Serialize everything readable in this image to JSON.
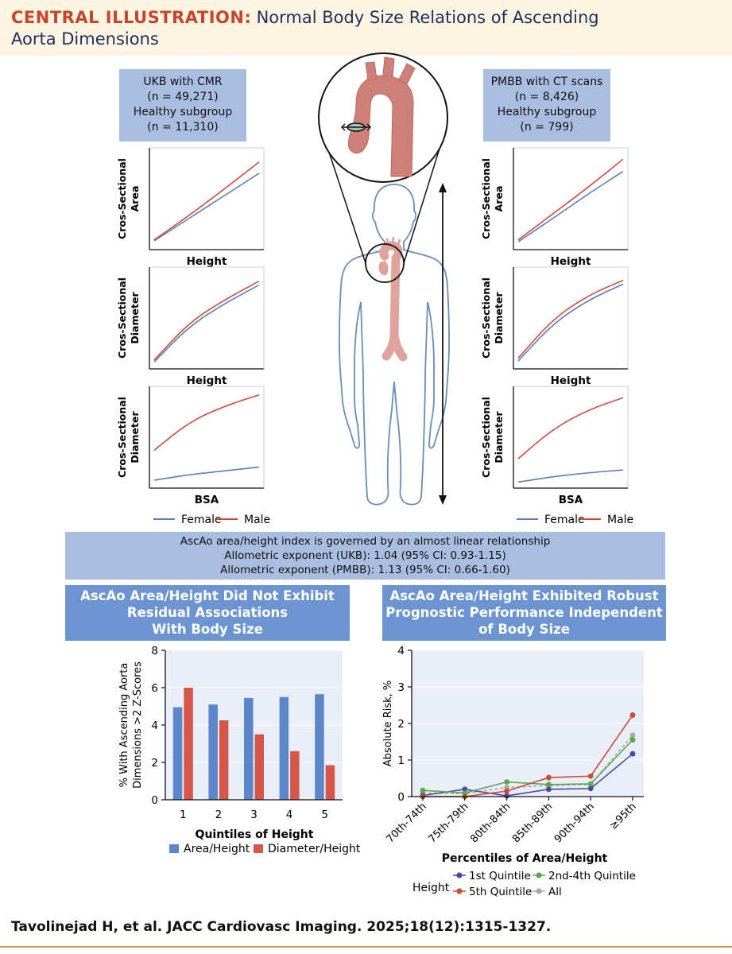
{
  "header": {
    "label": "CENTRAL ILLUSTRATION",
    "colon": ":",
    "title_line1": "Normal Body Size Relations of Ascending",
    "title_line2": "Aorta Dimensions"
  },
  "cohorts": {
    "left": {
      "lines": [
        "UKB with CMR",
        "(n = 49,271)",
        "Healthy subgroup",
        "(n = 11,310)"
      ]
    },
    "right": {
      "lines": [
        "PMBB with CT scans",
        "(n = 8,426)",
        "Healthy subgroup",
        "(n = 799)"
      ]
    }
  },
  "small_charts": {
    "left": [
      {
        "ylabel_lines": [
          "Cros-Sectional",
          "Area"
        ],
        "xlabel": "Height"
      },
      {
        "ylabel_lines": [
          "Cros-Sectional",
          "Diameter"
        ],
        "xlabel": "Height"
      },
      {
        "ylabel_lines": [
          "Cros-Sectional",
          "Diameter"
        ],
        "xlabel": "BSA"
      }
    ],
    "right": [
      {
        "ylabel_lines": [
          "Cros-Sectional",
          "Area"
        ],
        "xlabel": "Height"
      },
      {
        "ylabel_lines": [
          "Cros-Sectional",
          "Diameter"
        ],
        "xlabel": "Height"
      },
      {
        "ylabel_lines": [
          "Cros-Sectional",
          "Diameter"
        ],
        "xlabel": "BSA"
      }
    ],
    "legend": {
      "female": "Female",
      "male": "Male"
    },
    "colors": {
      "female": "#5b7fb8",
      "male": "#cf4a3a"
    }
  },
  "summary": {
    "lines": [
      "AscAo area/height index is governed by an almost linear relationship",
      "Allometric exponent (UKB): 1.04 (95% CI: 0.93-1.15)",
      "Allometric exponent (PMBB): 1.13 (95% CI: 0.66-1.60)"
    ]
  },
  "panels": {
    "left_title_lines": [
      "AscAo Area/Height Did Not Exhibit",
      "Residual Associations",
      "With Body Size"
    ],
    "right_title_lines": [
      "AscAo Area/Height Exhibited Robust",
      "Prognostic Performance Independent",
      "of Body Size"
    ]
  },
  "chart_data": [
    {
      "type": "line",
      "title": "",
      "xlabel": "Height",
      "ylabel": "Cros-Sectional Area",
      "series": [
        {
          "name": "Female",
          "values": [
            0.06,
            0.3,
            0.54,
            0.78
          ]
        },
        {
          "name": "Male",
          "values": [
            0.07,
            0.33,
            0.61,
            0.9
          ]
        }
      ]
    },
    {
      "type": "line",
      "title": "",
      "xlabel": "Height",
      "ylabel": "Cros-Sectional Diameter",
      "series": [
        {
          "name": "Female",
          "values": [
            0.04,
            0.42,
            0.66,
            0.86
          ]
        },
        {
          "name": "Male",
          "values": [
            0.06,
            0.46,
            0.7,
            0.9
          ]
        }
      ]
    },
    {
      "type": "line",
      "title": "",
      "xlabel": "BSA",
      "ylabel": "Cros-Sectional Diameter",
      "series": [
        {
          "name": "Female",
          "values": [
            0.05,
            0.11,
            0.15,
            0.19
          ]
        },
        {
          "name": "Male",
          "values": [
            0.37,
            0.67,
            0.84,
            0.96
          ]
        }
      ]
    },
    {
      "type": "line",
      "title": "",
      "xlabel": "Height",
      "ylabel": "Cros-Sectional Area",
      "series": [
        {
          "name": "Female",
          "values": [
            0.05,
            0.3,
            0.56,
            0.8
          ]
        },
        {
          "name": "Male",
          "values": [
            0.07,
            0.35,
            0.63,
            0.93
          ]
        }
      ]
    },
    {
      "type": "line",
      "title": "",
      "xlabel": "Height",
      "ylabel": "Cros-Sectional Diameter",
      "series": [
        {
          "name": "Female",
          "values": [
            0.05,
            0.45,
            0.7,
            0.87
          ]
        },
        {
          "name": "Male",
          "values": [
            0.08,
            0.5,
            0.75,
            0.91
          ]
        }
      ]
    },
    {
      "type": "line",
      "title": "",
      "xlabel": "BSA",
      "ylabel": "Cros-Sectional Diameter",
      "series": [
        {
          "name": "Female",
          "values": [
            0.03,
            0.09,
            0.13,
            0.16
          ]
        },
        {
          "name": "Male",
          "values": [
            0.28,
            0.6,
            0.8,
            0.93
          ]
        }
      ]
    },
    {
      "type": "bar",
      "title": "",
      "xlabel": "Quintiles of Height",
      "ylabel_lines": [
        "% With Ascending Aorta",
        "Dimensions >2 Z-Scores"
      ],
      "categories": [
        "1",
        "2",
        "3",
        "4",
        "5"
      ],
      "ylim": [
        0,
        8
      ],
      "yticks": [
        "0",
        "2",
        "4",
        "6",
        "8"
      ],
      "series": [
        {
          "name": "Area/Height",
          "color": "#5b86c9",
          "values": [
            4.95,
            5.1,
            5.45,
            5.5,
            5.65
          ]
        },
        {
          "name": "Diameter/Height",
          "color": "#d4574a",
          "values": [
            6.0,
            4.25,
            3.5,
            2.6,
            1.85
          ]
        }
      ]
    },
    {
      "type": "line",
      "title": "",
      "xlabel": "Percentiles of Area/Height",
      "ylabel": "Absolute Risk, %",
      "legend_title": "Height",
      "categories": [
        "70th-74th",
        "75th-79th",
        "80th-84th",
        "85th-89th",
        "90th-94th",
        "≥95th"
      ],
      "ylim": [
        0,
        4
      ],
      "yticks": [
        "0",
        "1",
        "2",
        "3",
        "4"
      ],
      "series": [
        {
          "name": "1st Quintile",
          "color": "#4a4aa0",
          "values": [
            0.03,
            0.2,
            0.02,
            0.2,
            0.22,
            1.17
          ]
        },
        {
          "name": "2nd-4th Quintile",
          "color": "#5ca84e",
          "values": [
            0.17,
            0.1,
            0.4,
            0.33,
            0.35,
            1.55
          ]
        },
        {
          "name": "5th Quintile",
          "color": "#cc4a34",
          "values": [
            0.0,
            0.0,
            0.15,
            0.52,
            0.56,
            2.23
          ]
        },
        {
          "name": "All",
          "color": "#a8a8a8",
          "values": [
            0.1,
            0.08,
            0.25,
            0.3,
            0.33,
            1.68
          ]
        }
      ]
    }
  ],
  "citation": "Tavolinejad H, et al. JACC Cardiovasc Imaging. 2025;18(12):1315-1327."
}
